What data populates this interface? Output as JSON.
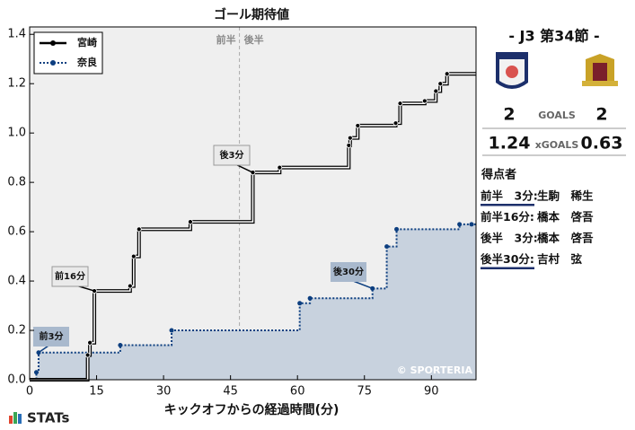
{
  "chart_data": {
    "type": "step",
    "title": "ゴール期待値",
    "xlabel": "キックオフからの経過時間(分)",
    "xlim": [
      0,
      100
    ],
    "ylim": [
      0,
      1.43
    ],
    "xticks": [
      0,
      15,
      30,
      45,
      60,
      75,
      90
    ],
    "yticks": [
      {
        "value": 0,
        "label": "0.0"
      },
      0.2,
      0.4,
      0.6,
      0.8,
      {
        "value": 1,
        "label": "1.0"
      },
      1.2,
      1.4
    ],
    "halftime": 47,
    "half_labels": [
      "前半",
      "後半"
    ],
    "legend": "upper left",
    "series": [
      {
        "name": "宮崎",
        "color": "#000000",
        "x": [
          0,
          13,
          13.5,
          14.5,
          22.5,
          23.3,
          24.5,
          36,
          50,
          56,
          71.5,
          71.8,
          73.5,
          82,
          83,
          88.5,
          91,
          92,
          93.5
        ],
        "values": [
          0,
          0.1,
          0.15,
          0.36,
          0.38,
          0.5,
          0.61,
          0.64,
          0.84,
          0.86,
          0.95,
          0.98,
          1.03,
          1.04,
          1.12,
          1.13,
          1.17,
          1.2,
          1.24
        ]
      },
      {
        "name": "奈良",
        "color": "#0d3f80",
        "fill": "#c8d2de",
        "x": [
          0,
          1.5,
          2,
          20.3,
          31.8,
          60.5,
          62.8,
          76.8,
          80,
          82.2,
          96.3,
          99
        ],
        "values": [
          0,
          0.03,
          0.11,
          0.14,
          0.2,
          0.31,
          0.33,
          0.37,
          0.54,
          0.61,
          0.63,
          0.63
        ]
      }
    ],
    "annotations": [
      "前3分",
      "前16分",
      "後3分",
      "後30分"
    ],
    "watermark": "© SPORTERIA"
  },
  "panel": {
    "round": "- J3 第34節 -",
    "home_goals": "2",
    "goals_label": "GOALS",
    "away_goals": "2",
    "home_xg": "1.24",
    "xg_label": "xGOALS",
    "away_xg": "0.63",
    "scorers_title": "得点者",
    "scorers": [
      [
        "前半　3分:",
        "生駒　稀生"
      ],
      [
        "前半16分:",
        "橋本　啓吾"
      ],
      [
        "後半　3分:",
        "橋本　啓吾"
      ],
      [
        "後半30分:",
        "吉村　弦"
      ]
    ]
  },
  "footer": {
    "brand": "STATs"
  }
}
